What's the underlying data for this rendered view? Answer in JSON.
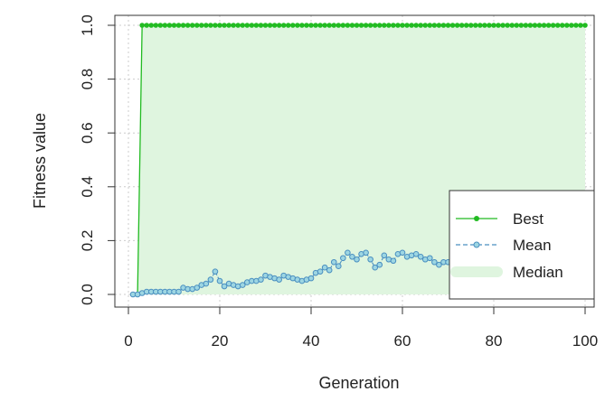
{
  "chart_data": {
    "type": "line",
    "xlabel": "Generation",
    "ylabel": "Fitness value",
    "xlim": [
      1,
      100
    ],
    "ylim": [
      0,
      1
    ],
    "x_ticks": [
      "0",
      "20",
      "40",
      "60",
      "80",
      "100"
    ],
    "y_ticks": [
      "0.0",
      "0.2",
      "0.4",
      "0.6",
      "0.8",
      "1.0"
    ],
    "grid": true,
    "legend_position": "bottom-right",
    "series": [
      {
        "name": "Best",
        "color": "#22bb22",
        "style": "solid line with filled points",
        "x": [
          1,
          2,
          3,
          4,
          5,
          6,
          7,
          8,
          9,
          10,
          11,
          12,
          13,
          14,
          15,
          16,
          17,
          18,
          19,
          20,
          21,
          22,
          23,
          24,
          25,
          26,
          27,
          28,
          29,
          30,
          31,
          32,
          33,
          34,
          35,
          36,
          37,
          38,
          39,
          40,
          41,
          42,
          43,
          44,
          45,
          46,
          47,
          48,
          49,
          50,
          51,
          52,
          53,
          54,
          55,
          56,
          57,
          58,
          59,
          60,
          61,
          62,
          63,
          64,
          65,
          66,
          67,
          68,
          69,
          70,
          71,
          72,
          73,
          74,
          75,
          76,
          77,
          78,
          79,
          80,
          81,
          82,
          83,
          84,
          85,
          86,
          87,
          88,
          89,
          90,
          91,
          92,
          93,
          94,
          95,
          96,
          97,
          98,
          99,
          100
        ],
        "values": [
          0,
          0,
          1,
          1,
          1,
          1,
          1,
          1,
          1,
          1,
          1,
          1,
          1,
          1,
          1,
          1,
          1,
          1,
          1,
          1,
          1,
          1,
          1,
          1,
          1,
          1,
          1,
          1,
          1,
          1,
          1,
          1,
          1,
          1,
          1,
          1,
          1,
          1,
          1,
          1,
          1,
          1,
          1,
          1,
          1,
          1,
          1,
          1,
          1,
          1,
          1,
          1,
          1,
          1,
          1,
          1,
          1,
          1,
          1,
          1,
          1,
          1,
          1,
          1,
          1,
          1,
          1,
          1,
          1,
          1,
          1,
          1,
          1,
          1,
          1,
          1,
          1,
          1,
          1,
          1,
          1,
          1,
          1,
          1,
          1,
          1,
          1,
          1,
          1,
          1,
          1,
          1,
          1,
          1,
          1,
          1,
          1,
          1,
          1,
          1
        ]
      },
      {
        "name": "Mean",
        "color": "#4a8fc0",
        "style": "dashed line with open circles",
        "x": [
          1,
          2,
          3,
          4,
          5,
          6,
          7,
          8,
          9,
          10,
          11,
          12,
          13,
          14,
          15,
          16,
          17,
          18,
          19,
          20,
          21,
          22,
          23,
          24,
          25,
          26,
          27,
          28,
          29,
          30,
          31,
          32,
          33,
          34,
          35,
          36,
          37,
          38,
          39,
          40,
          41,
          42,
          43,
          44,
          45,
          46,
          47,
          48,
          49,
          50,
          51,
          52,
          53,
          54,
          55,
          56,
          57,
          58,
          59,
          60,
          61,
          62,
          63,
          64,
          65,
          66,
          67,
          68,
          69,
          70
        ],
        "values": [
          0.0,
          0.0,
          0.005,
          0.01,
          0.01,
          0.01,
          0.01,
          0.01,
          0.01,
          0.01,
          0.01,
          0.025,
          0.02,
          0.02,
          0.025,
          0.035,
          0.04,
          0.055,
          0.085,
          0.05,
          0.03,
          0.04,
          0.035,
          0.03,
          0.035,
          0.045,
          0.05,
          0.05,
          0.055,
          0.07,
          0.065,
          0.06,
          0.055,
          0.07,
          0.065,
          0.06,
          0.055,
          0.05,
          0.055,
          0.06,
          0.08,
          0.085,
          0.1,
          0.09,
          0.12,
          0.105,
          0.135,
          0.155,
          0.14,
          0.13,
          0.15,
          0.155,
          0.13,
          0.1,
          0.11,
          0.145,
          0.13,
          0.125,
          0.15,
          0.155,
          0.14,
          0.145,
          0.15,
          0.14,
          0.13,
          0.135,
          0.12,
          0.11,
          0.12,
          0.12
        ]
      },
      {
        "name": "Median",
        "color": "#dff5df",
        "style": "filled area",
        "x": [
          1,
          2,
          3,
          4,
          100
        ],
        "values": [
          0,
          0,
          1,
          1,
          1
        ]
      }
    ]
  }
}
